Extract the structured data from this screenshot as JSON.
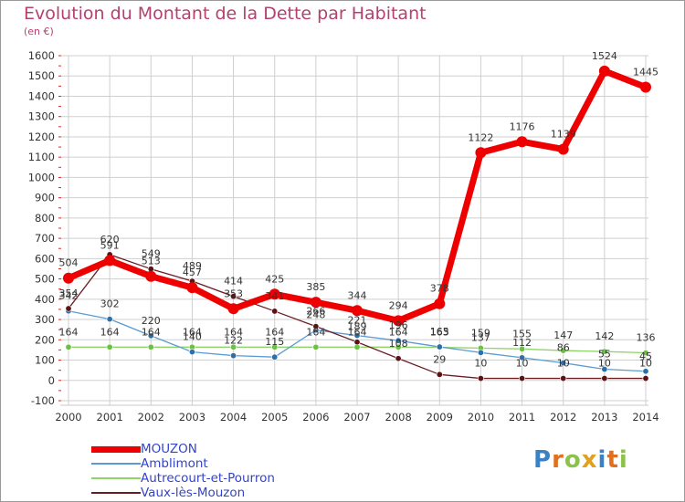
{
  "header": {
    "title": "Evolution du Montant de la Dette par Habitant",
    "unit": "(en €)"
  },
  "logo": {
    "text": "Proxiti"
  },
  "colors": {
    "title": "#b5406e",
    "grid": "#cfcfcf",
    "axis_tick": "#c8302e",
    "MOUZON": "#ee0000",
    "Amblimont": "#5a9bd4",
    "Autrecourt-et-Pourron": "#8fd46a",
    "Vaux-lès-Mouzon": "#6a1e24"
  },
  "chart_data": {
    "type": "line",
    "title": "Evolution du Montant de la Dette par Habitant",
    "ylabel": "(en €)",
    "xlabel": "",
    "ylim": [
      -100,
      1600
    ],
    "yticks": [
      -100,
      0,
      100,
      200,
      300,
      400,
      500,
      600,
      700,
      800,
      900,
      1000,
      1100,
      1200,
      1300,
      1400,
      1500,
      1600
    ],
    "grid": true,
    "legend_position": "bottom-left",
    "x": [
      "2000",
      "2001",
      "2002",
      "2003",
      "2004",
      "2005",
      "2006",
      "2007",
      "2008",
      "2009",
      "2010",
      "2011",
      "2012",
      "2013",
      "2014"
    ],
    "series": [
      {
        "name": "MOUZON",
        "values": [
          504,
          591,
          513,
          457,
          353,
          425,
          385,
          344,
          294,
          378,
          1122,
          1176,
          1139,
          1524,
          1445
        ]
      },
      {
        "name": "Amblimont",
        "values": [
          342,
          302,
          220,
          140,
          122,
          115,
          248,
          221,
          196,
          165,
          137,
          112,
          86,
          55,
          45
        ]
      },
      {
        "name": "Autrecourt-et-Pourron",
        "values": [
          164,
          164,
          164,
          164,
          164,
          164,
          164,
          164,
          164,
          163,
          159,
          155,
          147,
          142,
          136
        ]
      },
      {
        "name": "Vaux-lès-Mouzon",
        "values": [
          354,
          620,
          549,
          489,
          414,
          341,
          266,
          189,
          108,
          29,
          10,
          10,
          10,
          10,
          10
        ]
      }
    ]
  }
}
